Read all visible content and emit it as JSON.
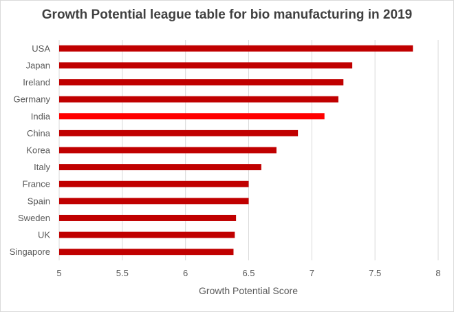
{
  "chart_data": {
    "type": "bar",
    "orientation": "horizontal",
    "title": "Growth Potential league table for bio manufacturing  in 2019",
    "xlabel": "Growth Potential Score",
    "ylabel": "",
    "xlim": [
      5,
      8
    ],
    "xticks": [
      "5",
      "5.5",
      "6",
      "6.5",
      "7",
      "7.5",
      "8"
    ],
    "grid": "vertical",
    "legend": "none",
    "categories": [
      "USA",
      "Japan",
      "Ireland",
      "Germany",
      "India",
      "China",
      "Korea",
      "Italy",
      "France",
      "Spain",
      "Sweden",
      "UK",
      "Singapore"
    ],
    "values": [
      7.8,
      7.32,
      7.25,
      7.21,
      7.1,
      6.89,
      6.72,
      6.6,
      6.5,
      6.5,
      6.4,
      6.39,
      6.38
    ],
    "bar_color": "#c00000",
    "highlight_color": "#ff0000",
    "highlight_category": "India"
  }
}
